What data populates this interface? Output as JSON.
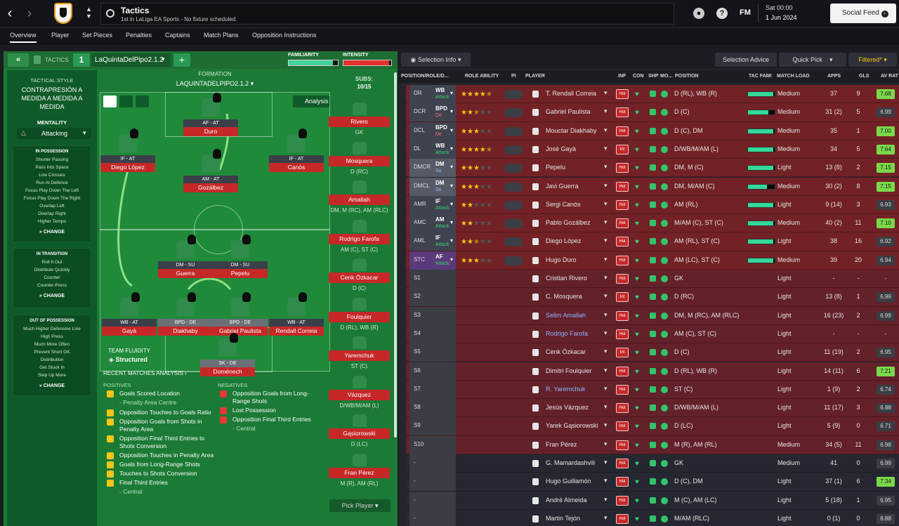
{
  "header": {
    "title": "Tactics",
    "subtitle": "1st in LaLiga EA Sports - No fixture scheduled.",
    "date_time": "Sat 00:00",
    "date": "1 Jun 2024",
    "social_feed": "Social Feed",
    "fm_label": "FM"
  },
  "tabs": [
    "Overview",
    "Player",
    "Set Pieces",
    "Penalties",
    "Captains",
    "Match Plans",
    "Opposition Instructions"
  ],
  "left_panel": {
    "tactics_label": "TACTICS",
    "tactic_slot": "1",
    "tactic_name": "LaQuintaDelPipo2.1.2",
    "familiarity_label": "FAMILIARITY",
    "intensity_label": "INTENSITY",
    "tactical_style_label": "TACTICAL STYLE",
    "tactical_style": "CONTRAPRESIÓN A MEDIDA A MEDIDA A MEDIDA",
    "mentality_label": "MENTALITY",
    "mentality": "Attacking",
    "in_possession": {
      "label": "IN POSSESSION",
      "items": [
        "Shorter Passing",
        "Pass Into Space",
        "Low Crosses",
        "Run At Defence",
        "Focus Play Down The Left",
        "Focus Play Down The Right",
        "Overlap Left",
        "Overlap Right",
        "Higher Tempo"
      ]
    },
    "in_transition": {
      "label": "IN TRANSITION",
      "items": [
        "Roll It Out",
        "Distribute Quickly",
        "Counter",
        "Counter-Press"
      ]
    },
    "out_of_possession": {
      "label": "OUT OF POSSESSION",
      "items": [
        "Much Higher Defensive Line",
        "High Press",
        "Much More Often",
        "Prevent Short GK",
        "Distribution",
        "Get Stuck In",
        "Step Up More"
      ]
    },
    "change_label": "CHANGE",
    "formation_label": "FORMATION",
    "formation_name": "LAQUINTADELPIPO2.1.2",
    "analysis_label": "Analysis",
    "subs_label": "SUBS:",
    "subs_count": "10/15",
    "team_fluidity_label": "TEAM FLUIDITY",
    "team_fluidity": "Structured",
    "recent_matches_label": "RECENT MATCHES ANALYSIS",
    "positives_label": "POSITIVES",
    "negatives_label": "NEGATIVES",
    "positives": [
      "Goals Scored Location",
      "- Penalty Area Centre",
      "Opposition Touches to Goals Ratio",
      "Opposition Goals from Shots in Penalty Area",
      "Opposition Final Third Entries to Shots Conversion",
      "Opposition Touches in Penalty Area",
      "Goals from Long-Range Shots",
      "Touches to Shots Conversion",
      "Final Third Entries",
      "- Central"
    ],
    "negatives": [
      "Opposition Goals from Long-Range Shots",
      "Lost Possession",
      "Opposition Final Third Entries",
      "- Central"
    ],
    "pitch_players": [
      {
        "role": "AF - AT",
        "name": "Duro"
      },
      {
        "role": "IF - AT",
        "name": "Diego López"
      },
      {
        "role": "AM - AT",
        "name": "Gozálbez"
      },
      {
        "role": "IF - AT",
        "name": "Canós"
      },
      {
        "role": "DM - SU",
        "name": "Guerra"
      },
      {
        "role": "DM - SU",
        "name": "Pepelu"
      },
      {
        "role": "WB - AT",
        "name": "Gayà"
      },
      {
        "role": "BPD - DE",
        "name": "Diakhaby"
      },
      {
        "role": "BPD - DE",
        "name": "Gabriel Paulista"
      },
      {
        "role": "WB - AT",
        "name": "Rendall Correia"
      },
      {
        "role": "SK - DE",
        "name": "Doménech"
      }
    ],
    "subs": [
      {
        "name": "Rivero",
        "pos": "GK"
      },
      {
        "name": "Mosquera",
        "pos": "D (RC)"
      },
      {
        "name": "Amallah",
        "pos": "DM, M (RC), AM (RLC)"
      },
      {
        "name": "Rodrigo Farofa",
        "pos": "AM (C), ST (C)"
      },
      {
        "name": "Cenk Özkacar",
        "pos": "D (C)"
      },
      {
        "name": "Foulquier",
        "pos": "D (RL), WB (R)"
      },
      {
        "name": "Yaremchuk",
        "pos": "ST (C)"
      },
      {
        "name": "Vázquez",
        "pos": "D/WB/M/AM (L)"
      },
      {
        "name": "Gąsiorowski",
        "pos": "D (LC)"
      },
      {
        "name": "Fran Pérez",
        "pos": "M (R), AM (RL)"
      }
    ],
    "pick_player": "Pick Player"
  },
  "right_panel": {
    "selection_info": "Selection Info",
    "selection_advice": "Selection Advice",
    "quick_pick": "Quick Pick",
    "filtered": "Filtered*",
    "columns": [
      "POSITION/ROLE/D...",
      "ROLE ABILITY",
      "PI",
      "PLAYER",
      "INF",
      "CON",
      "SHP",
      "MO...",
      "POSITION",
      "TAC FAMI",
      "MATCH LOAD",
      "APPS",
      "GLS",
      "AV RAT"
    ],
    "rows": [
      {
        "pos": "DR",
        "role": "WB",
        "duty": "Attack",
        "stars": 4.5,
        "player": "T. Rendall Correia",
        "inf": "Hol",
        "position": "D (RL), WB (R)",
        "fam": 0.95,
        "load": "Medium",
        "apps": "37",
        "gls": "9",
        "rat": "7.68",
        "type": "starter",
        "hi": "g"
      },
      {
        "pos": "DCR",
        "role": "BPD",
        "duty": "De",
        "stars": 2.5,
        "player": "Gabriel Paulista",
        "inf": "Hol",
        "position": "D (C)",
        "fam": 0.75,
        "load": "Medium",
        "apps": "31 (2)",
        "gls": "5",
        "rat": "6.99",
        "type": "starter",
        "hi": "n"
      },
      {
        "pos": "DCL",
        "role": "BPD",
        "duty": "De",
        "stars": 3,
        "player": "Mouctar Diakhaby",
        "inf": "Hol",
        "position": "D (C), DM",
        "fam": 0.95,
        "load": "Medium",
        "apps": "35",
        "gls": "1",
        "rat": "7.00",
        "type": "starter",
        "hi": "g"
      },
      {
        "pos": "DL",
        "role": "WB",
        "duty": "Attack",
        "stars": 4.5,
        "player": "José Gayà",
        "inf": "Int",
        "position": "D/WB/M/AM (L)",
        "fam": 0.95,
        "load": "Medium",
        "apps": "34",
        "gls": "5",
        "rat": "7.64",
        "type": "starter",
        "hi": "g"
      },
      {
        "pos": "DMCR",
        "role": "DM",
        "duty": "Su",
        "stars": 3,
        "player": "Pepelu",
        "inf": "Hol",
        "position": "DM, M (C)",
        "fam": 0.95,
        "load": "Light",
        "apps": "13 (8)",
        "gls": "2",
        "rat": "7.15",
        "type": "starter",
        "hi": "g"
      },
      {
        "pos": "DMCL",
        "role": "DM",
        "duty": "Su",
        "stars": 3,
        "player": "Javi Guerra",
        "inf": "Hol",
        "position": "DM, M/AM (C)",
        "fam": 0.7,
        "load": "Medium",
        "apps": "30 (2)",
        "gls": "8",
        "rat": "7.15",
        "type": "starter",
        "hi": "g"
      },
      {
        "pos": "AMR",
        "role": "IF",
        "duty": "Attack",
        "stars": 2,
        "player": "Sergi Canós",
        "inf": "Hol",
        "position": "AM (RL)",
        "fam": 0.95,
        "load": "Light",
        "apps": "9 (14)",
        "gls": "3",
        "rat": "6.93",
        "type": "starter",
        "hi": "n"
      },
      {
        "pos": "AMC",
        "role": "AM",
        "duty": "Attack",
        "stars": 2,
        "player": "Pablo Gozálbez",
        "inf": "Hol",
        "position": "M/AM (C), ST (C)",
        "fam": 0.95,
        "load": "Medium",
        "apps": "40 (2)",
        "gls": "11",
        "rat": "7.10",
        "type": "starter",
        "hi": "g"
      },
      {
        "pos": "AML",
        "role": "IF",
        "duty": "Attack",
        "stars": 2.5,
        "player": "Diego López",
        "inf": "Hol",
        "position": "AM (RL), ST (C)",
        "fam": 0.95,
        "load": "Light",
        "apps": "38",
        "gls": "16",
        "rat": "6.92",
        "type": "starter",
        "hi": "n"
      },
      {
        "pos": "STC",
        "role": "AF",
        "duty": "Attack",
        "stars": 3,
        "player": "Hugo Duro",
        "inf": "Hol",
        "position": "AM (LC), ST (C)",
        "fam": 0.95,
        "load": "Medium",
        "apps": "39",
        "gls": "20",
        "rat": "6.94",
        "type": "starter",
        "hi": "n"
      },
      {
        "pos": "S1",
        "role": "",
        "duty": "",
        "stars": 0,
        "player": "Cristian Rivero",
        "inf": "Hol",
        "position": "GK",
        "fam": 0,
        "load": "Light",
        "apps": "-",
        "gls": "-",
        "rat": "-",
        "type": "sub",
        "hi": "e"
      },
      {
        "pos": "S2",
        "role": "",
        "duty": "",
        "stars": 0,
        "player": "C. Mosquera",
        "inf": "Int",
        "position": "D (RC)",
        "fam": 0,
        "load": "Light",
        "apps": "13 (8)",
        "gls": "1",
        "rat": "6.99",
        "type": "sub",
        "hi": "n"
      },
      {
        "pos": "S3",
        "role": "",
        "duty": "",
        "stars": 0,
        "player": "Selim Amallah",
        "inf": "Hol",
        "position": "DM, M (RC), AM (RLC)",
        "fam": 0,
        "load": "Light",
        "apps": "16 (23)",
        "gls": "2",
        "rat": "6.99",
        "type": "sub",
        "hi": "n",
        "blue": true
      },
      {
        "pos": "S4",
        "role": "",
        "duty": "",
        "stars": 0,
        "player": "Rodrigo Farofa",
        "inf": "Hol",
        "position": "AM (C), ST (C)",
        "fam": 0,
        "load": "Light",
        "apps": "-",
        "gls": "-",
        "rat": "-",
        "type": "sub",
        "hi": "e",
        "blue": true
      },
      {
        "pos": "S5",
        "role": "",
        "duty": "",
        "stars": 0,
        "player": "Cenk Özkacar",
        "inf": "Int",
        "position": "D (C)",
        "fam": 0,
        "load": "Light",
        "apps": "11 (19)",
        "gls": "2",
        "rat": "6.95",
        "type": "sub",
        "hi": "n"
      },
      {
        "pos": "S6",
        "role": "",
        "duty": "",
        "stars": 0,
        "player": "Dimitri Foulquier",
        "inf": "Hol",
        "position": "D (RL), WB (R)",
        "fam": 0,
        "load": "Light",
        "apps": "14 (11)",
        "gls": "6",
        "rat": "7.21",
        "type": "sub",
        "hi": "g"
      },
      {
        "pos": "S7",
        "role": "",
        "duty": "",
        "stars": 0,
        "player": "R. Yaremchuk",
        "inf": "Hol",
        "position": "ST (C)",
        "fam": 0,
        "load": "Light",
        "apps": "1 (9)",
        "gls": "2",
        "rat": "6.74",
        "type": "sub",
        "hi": "n",
        "blue": true
      },
      {
        "pos": "S8",
        "role": "",
        "duty": "",
        "stars": 0,
        "player": "Jesús Vázquez",
        "inf": "Hol",
        "position": "D/WB/M/AM (L)",
        "fam": 0,
        "load": "Light",
        "apps": "11 (17)",
        "gls": "3",
        "rat": "6.88",
        "type": "sub",
        "hi": "n"
      },
      {
        "pos": "S9",
        "role": "",
        "duty": "",
        "stars": 0,
        "player": "Yarek Gąsiorowski",
        "inf": "Hol",
        "position": "D (LC)",
        "fam": 0,
        "load": "Light",
        "apps": "5 (9)",
        "gls": "0",
        "rat": "6.71",
        "type": "sub",
        "hi": "n"
      },
      {
        "pos": "S10",
        "role": "",
        "duty": "",
        "stars": 0,
        "player": "Fran Pérez",
        "inf": "Hol",
        "position": "M (R), AM (RL)",
        "fam": 0,
        "load": "Medium",
        "apps": "34 (5)",
        "gls": "11",
        "rat": "6.98",
        "type": "sub",
        "hi": "n"
      },
      {
        "pos": "-",
        "role": "",
        "duty": "",
        "stars": 0,
        "player": "G. Mamardashvili",
        "inf": "Hol",
        "position": "GK",
        "fam": 0,
        "load": "Medium",
        "apps": "41",
        "gls": "0",
        "rat": "6.99",
        "type": "res",
        "hi": "n"
      },
      {
        "pos": "-",
        "role": "",
        "duty": "",
        "stars": 0,
        "player": "Hugo Guillamón",
        "inf": "Hol",
        "position": "D (C), DM",
        "fam": 0,
        "load": "Light",
        "apps": "37 (1)",
        "gls": "6",
        "rat": "7.34",
        "type": "res",
        "hi": "g"
      },
      {
        "pos": "-",
        "role": "",
        "duty": "",
        "stars": 0,
        "player": "André Almeida",
        "inf": "Hol",
        "position": "M (C), AM (LC)",
        "fam": 0,
        "load": "Light",
        "apps": "5 (18)",
        "gls": "1",
        "rat": "6.95",
        "type": "res",
        "hi": "n"
      },
      {
        "pos": "-",
        "role": "",
        "duty": "",
        "stars": 0,
        "player": "Martin Tejón",
        "inf": "Hol",
        "position": "M/AM (RLC)",
        "fam": 0,
        "load": "Light",
        "apps": "0 (1)",
        "gls": "0",
        "rat": "6.88",
        "type": "res",
        "hi": "n"
      }
    ]
  }
}
